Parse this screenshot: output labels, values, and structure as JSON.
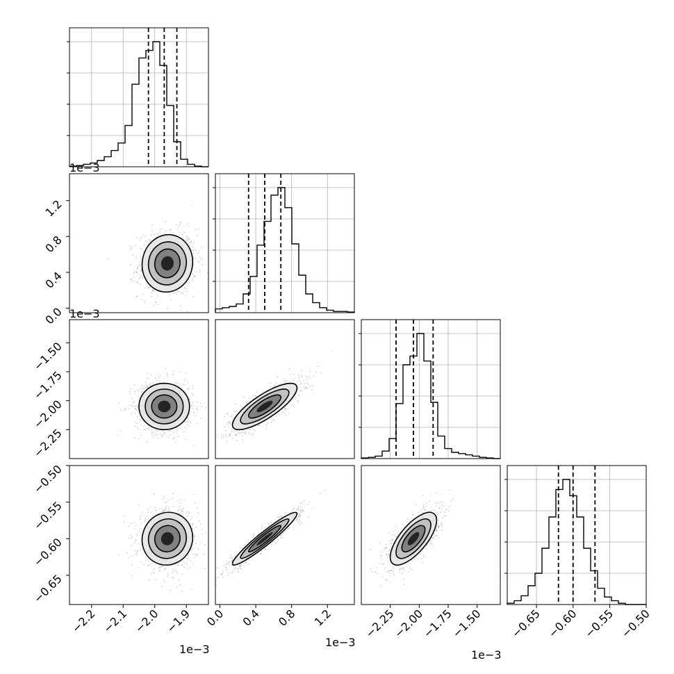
{
  "chart_data": {
    "type": "corner",
    "num_params": 4,
    "grid": true,
    "offset_labels": [
      "1e−3",
      "1e−3",
      "1e−3",
      "1e−3",
      "1e−3",
      "1e−3"
    ],
    "params": [
      {
        "index": 0,
        "range": [
          -2.27,
          -1.83
        ],
        "ticks": [
          -2.2,
          -2.1,
          -2.0,
          -1.9
        ],
        "tick_labels": [
          "−2.2",
          "−2.1",
          "−2.0",
          "−1.9"
        ],
        "offset_label": "1e−3",
        "quantiles": [
          -2.02,
          -1.97,
          -1.93
        ],
        "hist_values": [
          0.005,
          0.01,
          0.02,
          0.03,
          0.05,
          0.08,
          0.13,
          0.19,
          0.33,
          0.66,
          0.87,
          0.93,
          1.0,
          0.81,
          0.49,
          0.2,
          0.06,
          0.02,
          0.005,
          0.0
        ]
      },
      {
        "index": 1,
        "range": [
          -0.05,
          1.5
        ],
        "ticks": [
          0.0,
          0.4,
          0.8,
          1.2
        ],
        "tick_labels": [
          "0.0",
          "0.4",
          "0.8",
          "1.2"
        ],
        "offset_label": "1e−3",
        "quantiles": [
          0.32,
          0.5,
          0.68
        ],
        "hist_values": [
          0.03,
          0.04,
          0.05,
          0.07,
          0.15,
          0.29,
          0.54,
          0.73,
          0.94,
          1.0,
          0.84,
          0.55,
          0.3,
          0.15,
          0.08,
          0.04,
          0.02,
          0.01,
          0.01,
          0.005
        ]
      },
      {
        "index": 2,
        "range": [
          -2.5,
          -1.3
        ],
        "ticks": [
          -2.25,
          -2.0,
          -1.75,
          -1.5
        ],
        "tick_labels": [
          "−2.25",
          "−2.00",
          "−1.75",
          "−1.50"
        ],
        "offset_label": "1e−3",
        "quantiles": [
          -2.2,
          -2.05,
          -1.88
        ],
        "hist_values": [
          0.005,
          0.01,
          0.02,
          0.06,
          0.16,
          0.44,
          0.75,
          0.82,
          1.0,
          0.78,
          0.45,
          0.18,
          0.08,
          0.05,
          0.04,
          0.03,
          0.02,
          0.01,
          0.005,
          0.0
        ]
      },
      {
        "index": 3,
        "range": [
          -0.69,
          -0.5
        ],
        "ticks": [
          -0.65,
          -0.6,
          -0.55,
          -0.5
        ],
        "tick_labels": [
          "−0.65",
          "−0.60",
          "−0.55",
          "−0.50"
        ],
        "offset_label": "",
        "quantiles": [
          -0.62,
          -0.6,
          -0.57
        ],
        "hist_values": [
          0.01,
          0.03,
          0.07,
          0.15,
          0.25,
          0.45,
          0.7,
          0.92,
          1.0,
          0.87,
          0.7,
          0.45,
          0.27,
          0.13,
          0.06,
          0.03,
          0.01,
          0.0,
          0.0,
          0.0
        ]
      }
    ],
    "pairs": [
      {
        "x": 0,
        "y": 1,
        "center": [
          -1.96,
          0.5
        ],
        "sigma": [
          0.04,
          0.16
        ],
        "rho": 0.05,
        "levels": [
          0.5,
          1.0,
          1.5,
          2.0
        ]
      },
      {
        "x": 0,
        "y": 2,
        "center": [
          -1.97,
          -2.05
        ],
        "sigma": [
          0.04,
          0.1
        ],
        "rho": 0.0,
        "levels": [
          0.5,
          1.0,
          1.5,
          2.0
        ]
      },
      {
        "x": 1,
        "y": 2,
        "center": [
          0.5,
          -2.05
        ],
        "sigma": [
          0.18,
          0.1
        ],
        "rho": 0.8,
        "levels": [
          0.5,
          1.0,
          1.5,
          2.0
        ]
      },
      {
        "x": 0,
        "y": 3,
        "center": [
          -1.96,
          -0.6
        ],
        "sigma": [
          0.04,
          0.018
        ],
        "rho": 0.05,
        "levels": [
          0.5,
          1.0,
          1.5,
          2.0
        ]
      },
      {
        "x": 1,
        "y": 3,
        "center": [
          0.5,
          -0.6
        ],
        "sigma": [
          0.18,
          0.018
        ],
        "rho": 0.95,
        "levels": [
          0.5,
          1.0,
          1.5,
          2.0
        ]
      },
      {
        "x": 2,
        "y": 3,
        "center": [
          -2.05,
          -0.6
        ],
        "sigma": [
          0.1,
          0.018
        ],
        "rho": 0.7,
        "levels": [
          0.5,
          1.0,
          1.5,
          2.0
        ]
      }
    ]
  }
}
